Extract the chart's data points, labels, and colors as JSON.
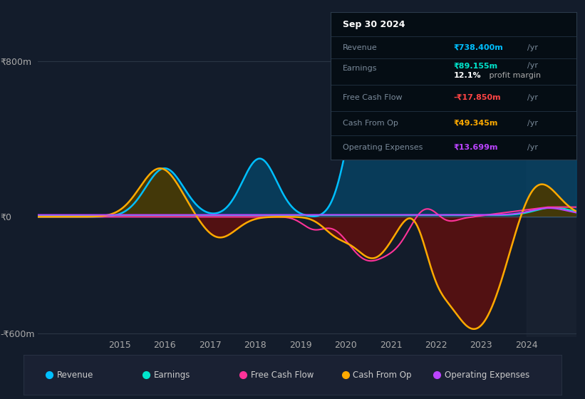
{
  "background_color": "#131c2b",
  "plot_bg_color": "#131c2b",
  "colors": {
    "revenue": "#00bfff",
    "earnings": "#00e5cc",
    "free_cash_flow": "#ff3399",
    "cash_from_op": "#ffaa00",
    "operating_expenses": "#bb44ff"
  },
  "info_box_bg": "#0a0f1a",
  "legend": [
    {
      "label": "Revenue",
      "color": "#00bfff"
    },
    {
      "label": "Earnings",
      "color": "#00e5cc"
    },
    {
      "label": "Free Cash Flow",
      "color": "#ff3399"
    },
    {
      "label": "Cash From Op",
      "color": "#ffaa00"
    },
    {
      "label": "Operating Expenses",
      "color": "#bb44ff"
    }
  ]
}
